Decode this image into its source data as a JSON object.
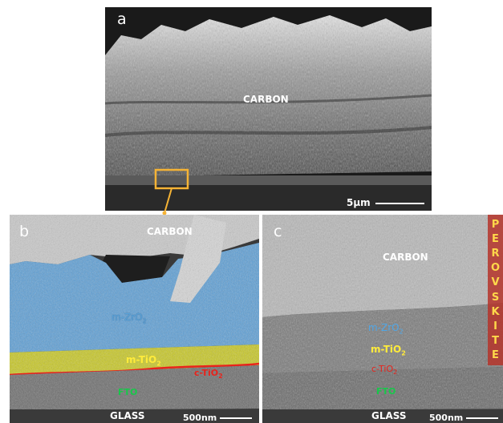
{
  "colors": {
    "scale_text": "#ffffff",
    "zoom_box": "#f5b335",
    "m_zro2": "#5aa2d8",
    "m_tio2": "#e8e818",
    "c_tio2": "#e8231c",
    "fto": "#18c84a",
    "perovskite_bar": "#b5342a",
    "perovskite_text": "#ffd84a"
  },
  "panel_a": {
    "letter": "a",
    "carbon": "CARBON",
    "scale": "5µm"
  },
  "panel_b": {
    "letter": "b",
    "carbon": "CARBON",
    "zro2": "m-ZrO",
    "zro2_sub": "2",
    "mtio2": "m-TiO",
    "mtio2_sub": "2",
    "ctio2": "c-TiO",
    "ctio2_sub": "2",
    "fto": "FTO",
    "glass": "GLASS",
    "scale": "500nm"
  },
  "panel_c": {
    "letter": "c",
    "carbon": "CARBON",
    "zro2": "m-ZrO",
    "zro2_sub": "2",
    "mtio2": "m-TiO",
    "mtio2_sub": "2",
    "ctio2": "c-TiO",
    "ctio2_sub": "2",
    "fto": "FTO",
    "glass": "GLASS",
    "scale": "500nm",
    "perovskite_letters": [
      "P",
      "E",
      "R",
      "O",
      "V",
      "S",
      "K",
      "I",
      "T",
      "E"
    ]
  }
}
